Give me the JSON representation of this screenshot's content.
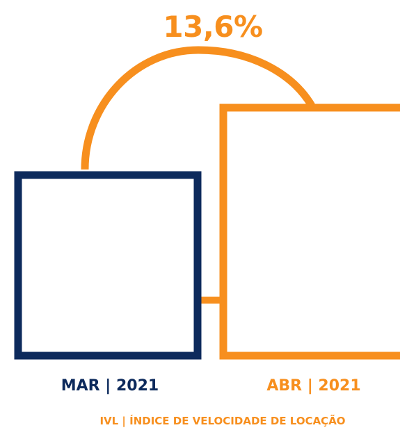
{
  "chart_data": {
    "type": "bar",
    "categories": [
      "MAR | 2021",
      "ABR | 2021"
    ],
    "values": [
      1,
      1.136
    ],
    "change_label": "13,6%",
    "footnote": "IVL | ÍNDICE DE VELOCIDADE DE LOCAÇÃO"
  },
  "colors": {
    "navy": "#0d2a5c",
    "orange": "#f78f1e"
  }
}
